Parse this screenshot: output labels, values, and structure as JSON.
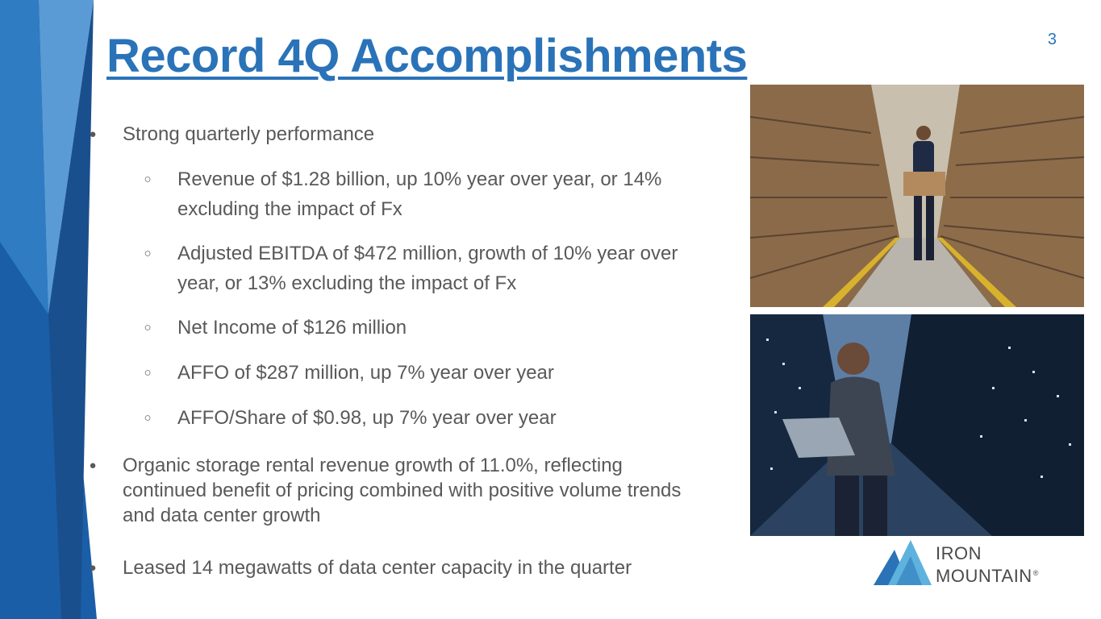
{
  "slide": {
    "page_number": "3",
    "title": "Record 4Q Accomplishments"
  },
  "bullets": [
    {
      "level": 1,
      "text": "Strong quarterly performance"
    },
    {
      "level": 2,
      "text": "Revenue of $1.28 billion, up 10% year over year, or 14% excluding the impact of Fx"
    },
    {
      "level": 2,
      "text": "Adjusted EBITDA of $472 million, growth of 10% year over year, or 13% excluding the impact of Fx"
    },
    {
      "level": 2,
      "text": "Net Income of $126 million"
    },
    {
      "level": 2,
      "text": "AFFO of $287 million, up 7% year over year"
    },
    {
      "level": 2,
      "text": "AFFO/Share of $0.98, up 7% year over year"
    },
    {
      "level": 1,
      "text": "Organic storage rental revenue growth of 11.0%, reflecting continued benefit of pricing combined with positive volume trends and data center growth"
    },
    {
      "level": 1,
      "text": "Leased 14 megawatts of data center capacity in the quarter"
    }
  ],
  "markers": {
    "level1": "●",
    "level2": "○"
  },
  "images": {
    "top": "warehouse-worker-photo",
    "bottom": "data-center-technician-photo"
  },
  "logo": {
    "line1": "IRON",
    "line2": "MOUNTAIN",
    "mark": "®"
  },
  "colors": {
    "accent": "#2a73b8",
    "body_text": "#595959",
    "side_light": "#4a90cf",
    "side_dark": "#1d5a9c"
  }
}
